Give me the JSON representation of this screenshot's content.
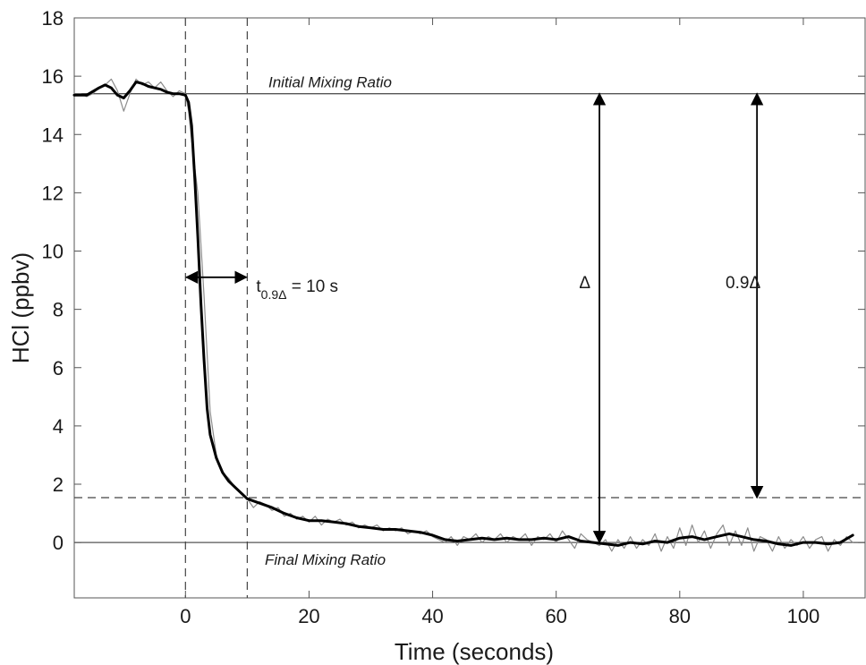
{
  "chart_data": {
    "type": "line",
    "xlabel": "Time (seconds)",
    "ylabel": "HCl (ppbv)",
    "xlim": [
      -18,
      110
    ],
    "ylim": [
      -1.9,
      18
    ],
    "x_ticks": [
      0,
      20,
      40,
      60,
      80,
      100
    ],
    "y_ticks": [
      0,
      2,
      4,
      6,
      8,
      10,
      12,
      14,
      16,
      18
    ],
    "grid": false,
    "series": [
      {
        "style": "thin gray raw data",
        "color": "#8c8c8c",
        "points": [
          [
            -18,
            15.4
          ],
          [
            -17,
            15.4
          ],
          [
            -16,
            15.3
          ],
          [
            -15,
            15.4
          ],
          [
            -14,
            15.6
          ],
          [
            -13,
            15.7
          ],
          [
            -12,
            15.9
          ],
          [
            -11,
            15.5
          ],
          [
            -10,
            14.8
          ],
          [
            -9,
            15.4
          ],
          [
            -8,
            15.9
          ],
          [
            -7,
            15.7
          ],
          [
            -6,
            15.8
          ],
          [
            -5,
            15.6
          ],
          [
            -4,
            15.8
          ],
          [
            -3,
            15.5
          ],
          [
            -2,
            15.3
          ],
          [
            -1,
            15.5
          ],
          [
            0,
            15.4
          ],
          [
            0.5,
            14.8
          ],
          [
            1,
            13.8
          ],
          [
            2,
            12.0
          ],
          [
            3,
            8.5
          ],
          [
            4,
            4.5
          ],
          [
            5,
            3.0
          ],
          [
            6,
            2.4
          ],
          [
            7,
            2.2
          ],
          [
            8,
            1.9
          ],
          [
            9,
            1.7
          ],
          [
            10,
            1.5
          ],
          [
            11,
            1.2
          ],
          [
            12,
            1.4
          ],
          [
            13,
            1.3
          ],
          [
            14,
            1.1
          ],
          [
            15,
            1.2
          ],
          [
            16,
            0.9
          ],
          [
            17,
            1.0
          ],
          [
            18,
            0.8
          ],
          [
            19,
            0.9
          ],
          [
            20,
            0.7
          ],
          [
            21,
            0.9
          ],
          [
            22,
            0.6
          ],
          [
            23,
            0.8
          ],
          [
            24,
            0.7
          ],
          [
            25,
            0.8
          ],
          [
            26,
            0.6
          ],
          [
            27,
            0.7
          ],
          [
            28,
            0.5
          ],
          [
            29,
            0.6
          ],
          [
            30,
            0.5
          ],
          [
            31,
            0.6
          ],
          [
            32,
            0.4
          ],
          [
            33,
            0.5
          ],
          [
            34,
            0.4
          ],
          [
            35,
            0.5
          ],
          [
            36,
            0.3
          ],
          [
            37,
            0.4
          ],
          [
            38,
            0.3
          ],
          [
            39,
            0.4
          ],
          [
            40,
            0.2
          ],
          [
            41,
            0.1
          ],
          [
            42,
            0.0
          ],
          [
            43,
            0.2
          ],
          [
            44,
            -0.1
          ],
          [
            45,
            0.2
          ],
          [
            46,
            0.1
          ],
          [
            47,
            0.3
          ],
          [
            48,
            0.0
          ],
          [
            49,
            0.2
          ],
          [
            50,
            0.1
          ],
          [
            51,
            0.3
          ],
          [
            52,
            0.0
          ],
          [
            53,
            0.2
          ],
          [
            54,
            0.1
          ],
          [
            55,
            0.3
          ],
          [
            56,
            -0.1
          ],
          [
            57,
            0.2
          ],
          [
            58,
            0.1
          ],
          [
            59,
            0.3
          ],
          [
            60,
            0.0
          ],
          [
            61,
            0.4
          ],
          [
            62,
            0.1
          ],
          [
            63,
            -0.2
          ],
          [
            64,
            0.3
          ],
          [
            65,
            0.1
          ],
          [
            66,
            0.0
          ],
          [
            67,
            -0.1
          ],
          [
            68,
            0.1
          ],
          [
            69,
            -0.3
          ],
          [
            70,
            0.1
          ],
          [
            71,
            -0.2
          ],
          [
            72,
            0.2
          ],
          [
            73,
            -0.2
          ],
          [
            74,
            0.1
          ],
          [
            75,
            -0.1
          ],
          [
            76,
            0.3
          ],
          [
            77,
            -0.3
          ],
          [
            78,
            0.2
          ],
          [
            79,
            -0.2
          ],
          [
            80,
            0.5
          ],
          [
            81,
            -0.1
          ],
          [
            82,
            0.6
          ],
          [
            83,
            0.0
          ],
          [
            84,
            0.4
          ],
          [
            85,
            -0.2
          ],
          [
            86,
            0.3
          ],
          [
            87,
            0.6
          ],
          [
            88,
            -0.1
          ],
          [
            89,
            0.4
          ],
          [
            90,
            -0.1
          ],
          [
            91,
            0.5
          ],
          [
            92,
            -0.3
          ],
          [
            93,
            0.2
          ],
          [
            94,
            0.1
          ],
          [
            95,
            -0.3
          ],
          [
            96,
            0.2
          ],
          [
            97,
            -0.2
          ],
          [
            98,
            0.1
          ],
          [
            99,
            -0.1
          ],
          [
            100,
            0.2
          ],
          [
            101,
            -0.2
          ],
          [
            102,
            0.1
          ],
          [
            103,
            0.2
          ],
          [
            104,
            -0.3
          ],
          [
            105,
            0.1
          ],
          [
            106,
            -0.1
          ],
          [
            107,
            0.2
          ],
          [
            108,
            0.0
          ]
        ]
      },
      {
        "style": "thick black smoothed data",
        "color": "#000000",
        "points": [
          [
            -18,
            15.35
          ],
          [
            -16,
            15.35
          ],
          [
            -14,
            15.6
          ],
          [
            -13,
            15.7
          ],
          [
            -12,
            15.6
          ],
          [
            -11,
            15.35
          ],
          [
            -10,
            15.25
          ],
          [
            -9,
            15.5
          ],
          [
            -8,
            15.8
          ],
          [
            -7,
            15.75
          ],
          [
            -6,
            15.65
          ],
          [
            -5,
            15.6
          ],
          [
            -4,
            15.55
          ],
          [
            -3,
            15.45
          ],
          [
            -2,
            15.4
          ],
          [
            -1,
            15.4
          ],
          [
            0,
            15.35
          ],
          [
            0.5,
            15.1
          ],
          [
            1,
            14.3
          ],
          [
            1.5,
            12.5
          ],
          [
            2,
            10.5
          ],
          [
            2.5,
            8.2
          ],
          [
            3,
            6.3
          ],
          [
            3.5,
            4.6
          ],
          [
            4,
            3.7
          ],
          [
            5,
            2.9
          ],
          [
            6,
            2.4
          ],
          [
            7,
            2.1
          ],
          [
            8,
            1.9
          ],
          [
            9,
            1.7
          ],
          [
            10,
            1.5
          ],
          [
            12,
            1.35
          ],
          [
            14,
            1.2
          ],
          [
            16,
            1.0
          ],
          [
            18,
            0.85
          ],
          [
            20,
            0.75
          ],
          [
            22,
            0.75
          ],
          [
            24,
            0.7
          ],
          [
            26,
            0.65
          ],
          [
            28,
            0.55
          ],
          [
            30,
            0.5
          ],
          [
            32,
            0.45
          ],
          [
            34,
            0.45
          ],
          [
            36,
            0.4
          ],
          [
            38,
            0.35
          ],
          [
            40,
            0.25
          ],
          [
            42,
            0.1
          ],
          [
            44,
            0.05
          ],
          [
            46,
            0.1
          ],
          [
            48,
            0.15
          ],
          [
            50,
            0.1
          ],
          [
            52,
            0.15
          ],
          [
            54,
            0.1
          ],
          [
            56,
            0.1
          ],
          [
            58,
            0.15
          ],
          [
            60,
            0.1
          ],
          [
            62,
            0.2
          ],
          [
            64,
            0.05
          ],
          [
            66,
            0.0
          ],
          [
            68,
            -0.05
          ],
          [
            70,
            -0.1
          ],
          [
            72,
            0.0
          ],
          [
            74,
            -0.05
          ],
          [
            76,
            0.05
          ],
          [
            78,
            0.0
          ],
          [
            80,
            0.15
          ],
          [
            82,
            0.2
          ],
          [
            84,
            0.1
          ],
          [
            86,
            0.2
          ],
          [
            88,
            0.3
          ],
          [
            90,
            0.2
          ],
          [
            92,
            0.1
          ],
          [
            94,
            0.05
          ],
          [
            96,
            -0.05
          ],
          [
            98,
            -0.1
          ],
          [
            100,
            0.0
          ],
          [
            102,
            0.0
          ],
          [
            104,
            -0.05
          ],
          [
            106,
            0.0
          ],
          [
            108,
            0.25
          ]
        ]
      }
    ],
    "reference_lines": {
      "initial_y": 15.4,
      "final_y": 0,
      "threshold_y": 1.54,
      "event_x": [
        0,
        10
      ]
    },
    "annotations": {
      "initial_label": "Initial Mixing Ratio",
      "final_label": "Final Mixing Ratio",
      "t_main": "t",
      "t_sub": "0.9Δ",
      "t_value": " = 10 s",
      "delta_label": "Δ",
      "delta09_label": "0.9Δ",
      "t_arrow_y": 9.1,
      "delta_arrow_x": 67,
      "delta09_arrow_x": 92.5
    }
  }
}
